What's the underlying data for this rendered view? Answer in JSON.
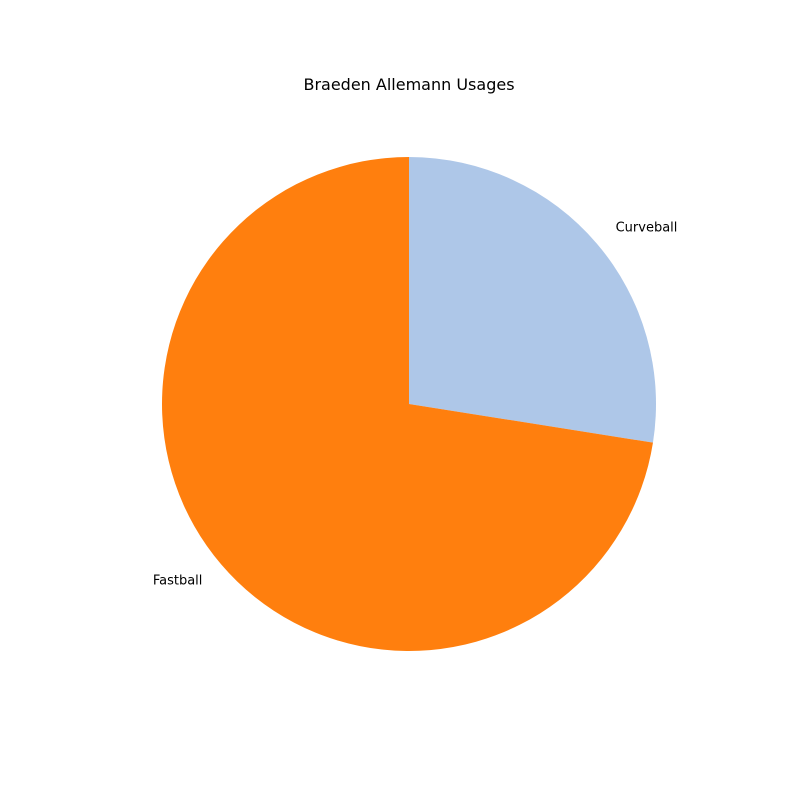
{
  "chart_data": {
    "type": "pie",
    "title": "Braeden Allemann Usages",
    "labels": [
      "Curveball",
      "Fastball"
    ],
    "values": [
      27.5,
      72.5
    ],
    "colors": [
      "#aec7e8",
      "#ff7f0e"
    ],
    "start_angle_deg": 90,
    "direction": "clockwise",
    "legend": "none"
  }
}
